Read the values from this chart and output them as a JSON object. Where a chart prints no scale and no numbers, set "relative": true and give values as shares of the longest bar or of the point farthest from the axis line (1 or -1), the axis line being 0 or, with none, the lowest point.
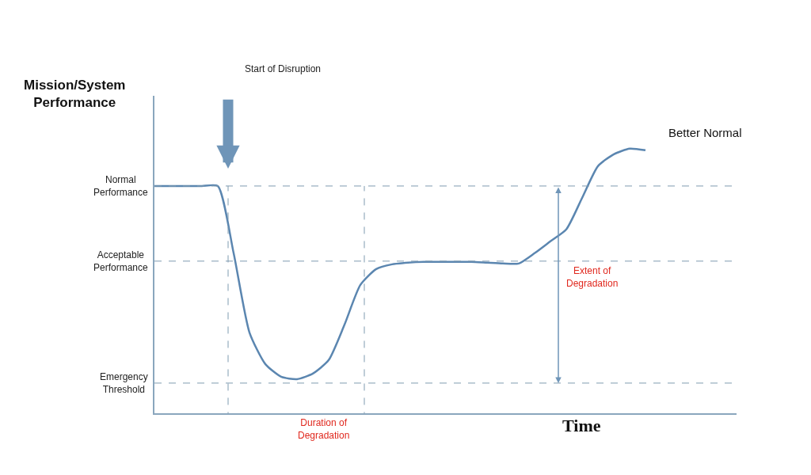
{
  "chart_data": {
    "type": "line",
    "relative": true,
    "ylabel": "Mission/System\nPerformance",
    "xlabel": "Time",
    "categories": [
      null,
      null,
      null,
      null,
      null,
      null,
      null,
      null,
      null,
      null,
      null,
      null,
      null,
      null,
      null,
      null,
      null,
      null,
      null,
      null,
      null,
      null,
      null,
      null,
      null,
      null,
      null,
      null,
      null,
      null,
      null,
      null
    ],
    "series": [
      {
        "color": "#5b86b0",
        "values": [
          0.859,
          0.859,
          0.859,
          0.859,
          0.859,
          0.605,
          0.305,
          0.186,
          0.138,
          0.129,
          0.15,
          0.201,
          0.335,
          0.485,
          0.545,
          0.563,
          0.569,
          0.572,
          0.572,
          0.572,
          0.572,
          0.569,
          0.566,
          0.566,
          0.605,
          0.65,
          0.695,
          0.814,
          0.934,
          0.979,
          1,
          0.994
        ]
      }
    ],
    "ref_lines": [
      {
        "axis": "y",
        "value": 0.859,
        "label": "Normal\nPerformance",
        "color": "#7f9bb0",
        "line_style": "dashed"
      },
      {
        "axis": "y",
        "value": 0.575,
        "label": "Acceptable\nPerformance",
        "color": "#7f9bb0",
        "line_style": "dashed"
      },
      {
        "axis": "y",
        "value": 0.114,
        "label": "Emergency\nThreshold",
        "color": "#7f9bb0",
        "line_style": "dashed"
      }
    ],
    "annotations": [
      "Start of Disruption",
      "Better Normal",
      "Duration of\nDegradation",
      "Extent of\nDegradation"
    ],
    "marker": "none",
    "line_style": "solid"
  }
}
